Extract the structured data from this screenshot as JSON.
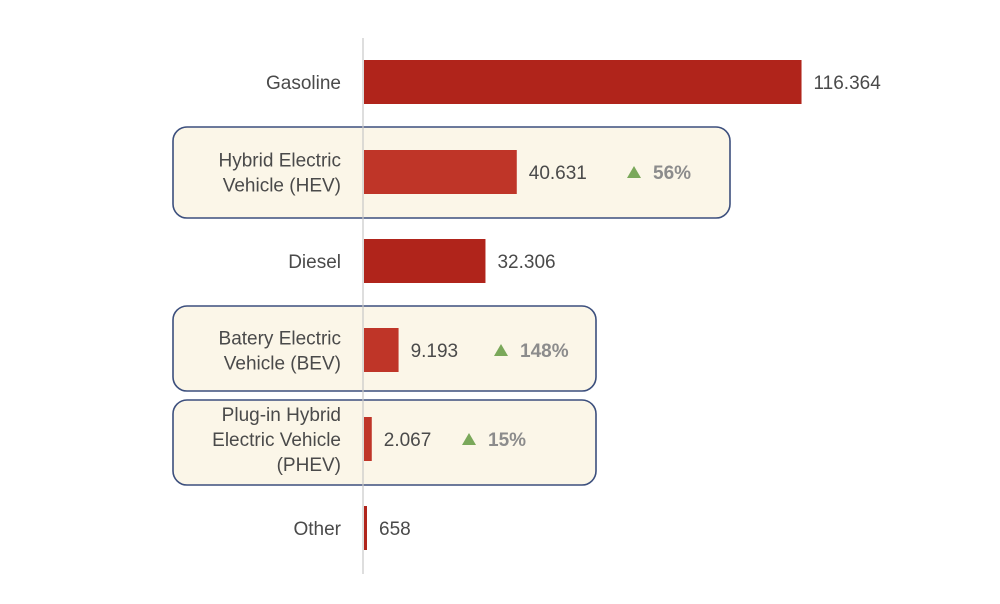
{
  "chart_data": {
    "type": "bar",
    "orientation": "horizontal",
    "title": "",
    "xlabel": "",
    "ylabel": "",
    "categories": [
      [
        "Gasoline"
      ],
      [
        "Hybrid Electric",
        "Vehicle (HEV)"
      ],
      [
        "Diesel"
      ],
      [
        "Batery Electric",
        "Vehicle (BEV)"
      ],
      [
        "Plug-in Hybrid",
        "Electric Vehicle",
        "(PHEV)"
      ],
      [
        "Other"
      ]
    ],
    "values": [
      116364,
      40631,
      32306,
      9193,
      2067,
      658
    ],
    "value_labels": [
      "116.364",
      "40.631",
      "32.306",
      "9.193",
      "2.067",
      "658"
    ],
    "changes": [
      "",
      "56%",
      "",
      "148%",
      "15%",
      ""
    ],
    "highlighted": [
      false,
      true,
      false,
      true,
      true,
      false
    ],
    "xlim": [
      0,
      125000
    ],
    "grid": false,
    "legend": "none",
    "colors": {
      "bar": "#b0241b",
      "bar_highlight": "#bf3528",
      "up_arrow": "#7aa85a",
      "box_fill": "#fbf6e8",
      "box_border": "#3c4f7d",
      "axis": "#c8c8c8"
    },
    "icons": {
      "change": "up-triangle-icon"
    }
  }
}
